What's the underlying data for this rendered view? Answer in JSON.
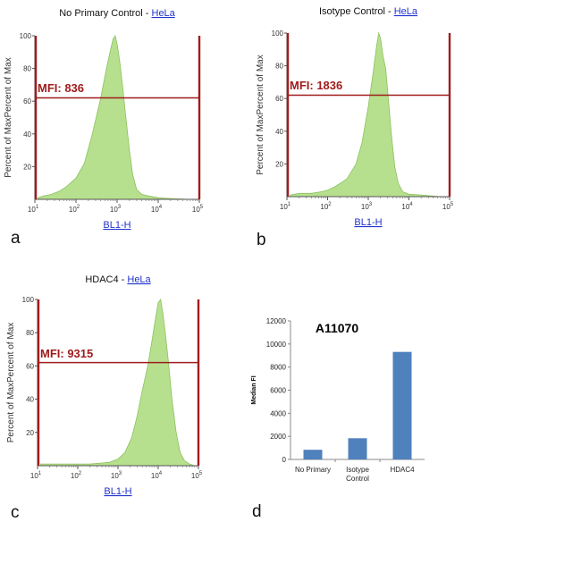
{
  "panels": {
    "a": {
      "letter": "a",
      "title_prefix": "No Primary Control - ",
      "title_link": "HeLa",
      "ylabel": "Percent of MaxPercent of Max",
      "xlabel": "BL1-H",
      "mfi": "MFI: 836"
    },
    "b": {
      "letter": "b",
      "title_prefix": "Isotype Control - ",
      "title_link": "HeLa",
      "ylabel": "Percent of MaxPercent of Max",
      "xlabel": "BL1-H",
      "mfi": "MFI: 1836"
    },
    "c": {
      "letter": "c",
      "title_prefix": "HDAC4 - ",
      "title_link": "HeLa",
      "ylabel": "Percent of MaxPercent of Max",
      "xlabel": "BL1-H",
      "mfi": "MFI: 9315"
    },
    "d": {
      "letter": "d"
    }
  },
  "colors": {
    "histogram_fill": "#b6e08e",
    "histogram_edge": "#8cc15f",
    "gate_line": "#a01c1c",
    "bar": "#4f81bd"
  },
  "chart_data": [
    {
      "type": "area",
      "title": "No Primary Control - HeLa",
      "xlabel": "BL1-H",
      "ylabel": "Percent of MaxPercent of Max",
      "x_scale": "log",
      "xlim": [
        10,
        100000
      ],
      "ylim": [
        0,
        100
      ],
      "x_ticks": [
        "10",
        "10",
        "10",
        "10",
        "10"
      ],
      "x_tick_exponents": [
        "1",
        "2",
        "3",
        "4",
        "5"
      ],
      "y_ticks": [
        "20",
        "40",
        "60",
        "80",
        "100"
      ],
      "gate_y": 62,
      "annotation": "MFI: 836",
      "series": [
        {
          "x": [
            12,
            16,
            25,
            40,
            60,
            100,
            160,
            250,
            400,
            550,
            700,
            800,
            900,
            1000,
            1150,
            1350,
            1600,
            2000,
            2400,
            3000,
            4000,
            6000,
            10000,
            20000,
            60000
          ],
          "y": [
            1,
            2,
            3,
            5,
            8,
            13,
            22,
            40,
            62,
            80,
            92,
            98,
            100,
            95,
            85,
            70,
            52,
            30,
            15,
            6,
            3,
            2,
            1,
            0.5,
            0
          ]
        }
      ]
    },
    {
      "type": "area",
      "title": "Isotype Control - HeLa",
      "xlabel": "BL1-H",
      "ylabel": "Percent of MaxPercent of Max",
      "x_scale": "log",
      "xlim": [
        10,
        100000
      ],
      "ylim": [
        0,
        100
      ],
      "x_ticks": [
        "10",
        "10",
        "10",
        "10",
        "10"
      ],
      "x_tick_exponents": [
        "1",
        "2",
        "3",
        "4",
        "5"
      ],
      "y_ticks": [
        "20",
        "40",
        "60",
        "80",
        "100"
      ],
      "gate_y": 62,
      "annotation": "MFI: 1836",
      "series": [
        {
          "x": [
            12,
            20,
            40,
            70,
            100,
            150,
            200,
            300,
            500,
            700,
            1000,
            1300,
            1600,
            1800,
            2000,
            2300,
            2700,
            3100,
            3700,
            4500,
            5500,
            7000,
            10000,
            20000,
            60000
          ],
          "y": [
            1,
            2,
            2,
            3,
            4,
            6,
            8,
            11,
            20,
            33,
            55,
            75,
            92,
            100,
            97,
            86,
            78,
            60,
            38,
            18,
            8,
            3,
            1.5,
            1,
            0
          ]
        }
      ]
    },
    {
      "type": "area",
      "title": "HDAC4 - HeLa",
      "xlabel": "BL1-H",
      "ylabel": "Percent of MaxPercent of Max",
      "x_scale": "log",
      "xlim": [
        10,
        100000
      ],
      "ylim": [
        0,
        100
      ],
      "x_ticks": [
        "10",
        "10",
        "10",
        "10",
        "10"
      ],
      "x_tick_exponents": [
        "1",
        "2",
        "3",
        "4",
        "5"
      ],
      "y_ticks": [
        "20",
        "40",
        "60",
        "80",
        "100"
      ],
      "gate_y": 62,
      "annotation": "MFI: 9315",
      "series": [
        {
          "x": [
            12,
            50,
            200,
            600,
            1000,
            1500,
            2200,
            3000,
            4000,
            5500,
            7000,
            8500,
            10000,
            11500,
            13000,
            15000,
            18000,
            22000,
            28000,
            35000,
            45000,
            60000,
            80000
          ],
          "y": [
            1,
            1,
            1,
            2,
            4,
            8,
            17,
            30,
            45,
            60,
            75,
            88,
            98,
            100,
            92,
            80,
            62,
            40,
            20,
            8,
            3,
            1,
            0
          ]
        }
      ]
    },
    {
      "type": "bar",
      "title": "A11070",
      "ylabel": "Median FI",
      "categories": [
        "No Primary",
        "Isotype Control",
        "HDAC4"
      ],
      "category_lines": [
        [
          "No Primary"
        ],
        [
          "Isotype",
          "Control"
        ],
        [
          "HDAC4"
        ]
      ],
      "values": [
        836,
        1836,
        9315
      ],
      "ylim": [
        0,
        12000
      ],
      "y_ticks": [
        "0",
        "2000",
        "4000",
        "6000",
        "8000",
        "10000",
        "12000"
      ]
    }
  ]
}
